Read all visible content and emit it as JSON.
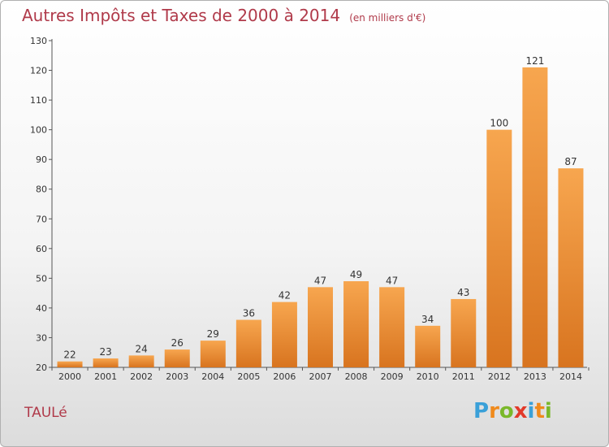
{
  "title": "Autres Impôts et Taxes de 2000 à 2014",
  "unit": "(en milliers d'€)",
  "commune": "TAULé",
  "logo": {
    "letters": [
      "P",
      "r",
      "o",
      "x",
      "i",
      "t",
      "i"
    ],
    "colors": [
      "#3aa0d8",
      "#f08a1c",
      "#7ab82a",
      "#e23a2a",
      "#3aa0d8",
      "#f08a1c",
      "#7ab82a"
    ]
  },
  "colors": {
    "bar_light": "#f7a64f",
    "bar_dark": "#d8741f",
    "title": "#b03a4a"
  },
  "chart_data": {
    "type": "bar",
    "title": "Autres Impôts et Taxes de 2000 à 2014",
    "xlabel": "",
    "ylabel": "",
    "categories": [
      "2000",
      "2001",
      "2002",
      "2003",
      "2004",
      "2005",
      "2006",
      "2007",
      "2008",
      "2009",
      "2010",
      "2011",
      "2012",
      "2013",
      "2014"
    ],
    "values": [
      22,
      23,
      24,
      26,
      29,
      36,
      42,
      47,
      49,
      47,
      34,
      43,
      100,
      121,
      87
    ],
    "ylim": [
      20,
      130
    ],
    "yticks": [
      20,
      30,
      40,
      50,
      60,
      70,
      80,
      90,
      100,
      110,
      120,
      130
    ],
    "grid": false,
    "legend": "none"
  }
}
